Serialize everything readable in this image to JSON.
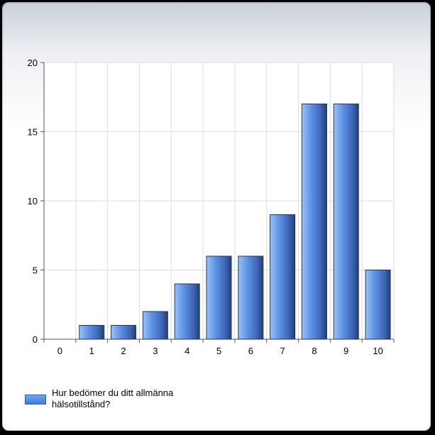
{
  "chart_data": {
    "type": "bar",
    "categories": [
      "0",
      "1",
      "2",
      "3",
      "4",
      "5",
      "6",
      "7",
      "8",
      "9",
      "10"
    ],
    "series": [
      {
        "name": "Hur bedömer du ditt allmänna hälsotillstånd?",
        "values": [
          0,
          1,
          1,
          2,
          4,
          6,
          6,
          9,
          17,
          17,
          5
        ]
      }
    ],
    "ylim": [
      0,
      20
    ],
    "yticks": [
      "0",
      "5",
      "10",
      "15",
      "20"
    ],
    "grid": true,
    "legend": "bottom-left"
  },
  "colors": {
    "bar_light": "#8fb8f2",
    "bar_mid": "#5b8fe0",
    "bar_dark": "#2c4f8c"
  }
}
